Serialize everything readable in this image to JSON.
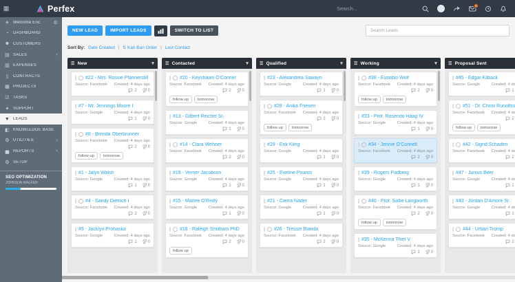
{
  "colors": {
    "primary": "#2f9cf4",
    "topbar": "#323a45",
    "sidebar": "#5f6b77",
    "badge": "#f07c1e",
    "card_highlight": "#d9ecfa"
  },
  "navbar": {
    "brand": "Perfex",
    "search_placeholder": "Search..."
  },
  "sidebar": {
    "items": [
      {
        "label": "Welcome Eric",
        "icon": "customizer-icon",
        "trailing_icon": "gear-icon"
      },
      {
        "label": "DASHBOARD",
        "icon": "dashboard-icon"
      },
      {
        "label": "CUSTOMERS",
        "icon": "customers-icon"
      },
      {
        "label": "SALES",
        "icon": "sales-icon",
        "chevron": true
      },
      {
        "label": "EXPENSES",
        "icon": "expenses-icon"
      },
      {
        "label": "CONTRACTS",
        "icon": "contracts-icon"
      },
      {
        "label": "PROJECTS",
        "icon": "projects-icon"
      },
      {
        "label": "TASKS",
        "icon": "tasks-icon"
      },
      {
        "label": "SUPPORT",
        "icon": "support-icon"
      },
      {
        "label": "LEADS",
        "icon": "leads-icon",
        "active": true
      },
      {
        "label": "KNOWLEDGE BASE",
        "icon": "knowledge-base-icon"
      },
      {
        "label": "UTILITIES",
        "icon": "utilities-icon",
        "chevron": true
      },
      {
        "label": "REPORTS",
        "icon": "reports-icon",
        "chevron": true
      },
      {
        "label": "SETUP",
        "icon": "setup-icon"
      }
    ],
    "seo": {
      "title": "SEO OPTIMIZATION",
      "subtitle": "JOHNSON WALKER",
      "progress_pct": 30
    }
  },
  "toolbar": {
    "new_lead": "NEW LEAD",
    "import_leads": "IMPORT LEADS",
    "switch_to_list": "SWITCH TO LIST",
    "search_placeholder": "Search Leads"
  },
  "sort": {
    "label": "Sort By:",
    "options": [
      "Date Created",
      "Kan Ban Order",
      "Last Contact"
    ]
  },
  "board": {
    "columns": [
      {
        "name": "New",
        "cards": [
          {
            "title": "#22 - Mrs. Rossie Pfannerstill III",
            "source": "Source: Facebook",
            "created": "Created: 4 days ago",
            "comments": 2,
            "attachments": 0,
            "tags": [],
            "reminder": true
          },
          {
            "title": "#7 - Mr. Jennings Moore I",
            "source": "Source: Google",
            "created": "Created: 4 days ago",
            "comments": 1,
            "attachments": 0,
            "tags": []
          },
          {
            "title": "#8 - Brenda Oberbrunner",
            "source": "Source: Facebook",
            "created": "Created: 4 days ago",
            "comments": 2,
            "attachments": 0,
            "tags": [
              "follow up",
              "tomorrow"
            ],
            "reminder": true
          },
          {
            "title": "#1 - Jalyn Walsh",
            "source": "Source: Google",
            "created": "Created: 4 days ago",
            "comments": 1,
            "attachments": 0,
            "tags": []
          },
          {
            "title": "#4 - Sandy Dietrich I",
            "source": "Source: Facebook",
            "created": "Created: 4 days ago",
            "comments": 2,
            "attachments": 0,
            "tags": [],
            "reminder": true
          },
          {
            "title": "#9 - Jacklyn Prohaska",
            "source": "Source: Google",
            "created": "Created: 4 days ago",
            "comments": 1,
            "attachments": 0,
            "tags": []
          }
        ]
      },
      {
        "name": "Contacted",
        "cards": [
          {
            "title": "#20 - Keyshawn O'Conner",
            "source": "Source: Facebook",
            "created": "Created: 4 days ago",
            "comments": 2,
            "attachments": 0,
            "tags": [
              "follow up",
              "tomorrow"
            ],
            "reminder": true
          },
          {
            "title": "#13 - Gilbert Reichel Sr.",
            "source": "Source: Google",
            "created": "Created: 4 days ago",
            "comments": 1,
            "attachments": 0,
            "tags": []
          },
          {
            "title": "#14 - Clara Wehner",
            "source": "Source: Facebook",
            "created": "Created: 4 days ago",
            "comments": 2,
            "attachments": 0,
            "tags": [],
            "reminder": true
          },
          {
            "title": "#19 - Verner Jacobson",
            "source": "Source: Google",
            "created": "Created: 4 days ago",
            "comments": 1,
            "attachments": 0,
            "tags": []
          },
          {
            "title": "#15 - Marlee O'Reilly",
            "source": "Source: Google",
            "created": "Created: 4 days ago",
            "comments": 1,
            "attachments": 0,
            "tags": []
          },
          {
            "title": "#18 - Raleigh Smitham PhD",
            "source": "Source: Facebook",
            "created": "Created: 4 days ago",
            "comments": 2,
            "attachments": 0,
            "tags": [
              "follow up"
            ],
            "reminder": true
          }
        ]
      },
      {
        "name": "Qualified",
        "cards": [
          {
            "title": "#23 - Alexandrea Sawayn",
            "source": "Source: Google",
            "created": "Created: 4 days ago",
            "comments": 1,
            "attachments": 0,
            "tags": []
          },
          {
            "title": "#28 - Anika Friesen",
            "source": "Source: Facebook",
            "created": "Created: 4 days ago",
            "comments": 2,
            "attachments": 0,
            "tags": [
              "follow up",
              "tomorrow"
            ],
            "reminder": true
          },
          {
            "title": "#29 - Erik Kling",
            "source": "Source: Google",
            "created": "Created: 4 days ago",
            "comments": 1,
            "attachments": 0,
            "tags": []
          },
          {
            "title": "#25 - Eveline Pouros",
            "source": "Source: Google",
            "created": "Created: 4 days ago",
            "comments": 1,
            "attachments": 0,
            "tags": []
          },
          {
            "title": "#21 - Cierra Nader",
            "source": "Source: Google",
            "created": "Created: 4 days ago",
            "comments": 1,
            "attachments": 0,
            "tags": []
          },
          {
            "title": "#26 - Tressie Blanda",
            "source": "Source: Facebook",
            "created": "Created: 4 days ago",
            "comments": 2,
            "attachments": 0,
            "tags": [],
            "reminder": true
          }
        ]
      },
      {
        "name": "Working",
        "cards": [
          {
            "title": "#38 - Eusebio Wolf",
            "source": "Source: Facebook",
            "created": "Created: 4 days ago",
            "comments": 2,
            "attachments": 0,
            "tags": [
              "follow up",
              "tomorrow"
            ],
            "reminder": true
          },
          {
            "title": "#33 - Prof. Rosendo Haag IV",
            "source": "Source: Google",
            "created": "Created: 4 days ago",
            "comments": 1,
            "attachments": 0,
            "tags": []
          },
          {
            "title": "#34 - Jennie O'Connell",
            "source": "Source: Facebook",
            "created": "Created: 4 days ago",
            "comments": 2,
            "attachments": 0,
            "tags": [],
            "reminder": true,
            "highlighted": true
          },
          {
            "title": "#39 - Rogers Padberg",
            "source": "Source: Google",
            "created": "Created: 4 days ago",
            "comments": 1,
            "attachments": 0,
            "tags": []
          },
          {
            "title": "#40 - Prof. Sallie Langworth",
            "source": "Source: Facebook",
            "created": "Created: 4 days ago",
            "comments": 2,
            "attachments": 0,
            "tags": [
              "follow up",
              "tomorrow"
            ],
            "reminder": true
          },
          {
            "title": "#35 - McKenna Thiel V",
            "source": "Source: Google",
            "created": "Created: 4 days ago",
            "comments": 1,
            "attachments": 0,
            "tags": []
          }
        ]
      },
      {
        "name": "Proposal Sent",
        "cards": [
          {
            "title": "#45 - Edgar Kilback",
            "source": "Source: Google",
            "created": "Created: 4 days ago",
            "comments": 1,
            "attachments": 0,
            "tags": []
          },
          {
            "title": "#51 - Dr. Christ Runolfsson",
            "source": "Source: Facebook",
            "created": "Created: 4 days ago",
            "comments": 2,
            "attachments": 0,
            "tags": [
              "follow up",
              "tomorrow"
            ],
            "reminder": true
          },
          {
            "title": "#42 - Sigrid Schaden",
            "source": "Source: Facebook",
            "created": "Created: 4 days ago",
            "comments": 2,
            "attachments": 0,
            "tags": [],
            "reminder": true
          },
          {
            "title": "#47 - Junius Beer",
            "source": "Source: Google",
            "created": "Created: 4 days ago",
            "comments": 1,
            "attachments": 0,
            "tags": []
          },
          {
            "title": "#43 - Jordan D'Amore Sr.",
            "source": "Source: Google",
            "created": "Created: 4 days ago",
            "comments": 1,
            "attachments": 0,
            "tags": []
          },
          {
            "title": "#44 - Urban Tromp",
            "source": "Source: Facebook",
            "created": "Created: 4 days ago",
            "comments": 2,
            "attachments": 0,
            "tags": [],
            "reminder": true
          }
        ]
      }
    ]
  }
}
